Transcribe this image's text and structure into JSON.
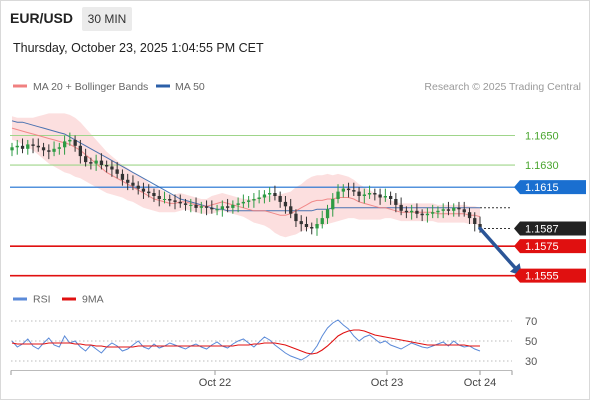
{
  "header": {
    "symbol": "EUR/USD",
    "timeframe": "30 MIN",
    "datetime": "Thursday, October 23, 2025 1:04:55 PM CET"
  },
  "colors": {
    "bull": "#2e9b44",
    "bear": "#333333",
    "ma20": "#f08080",
    "bands": "#fbd4d4",
    "ma50": "#2b5fa8",
    "target": "#1a6fd0",
    "support": "#e01010",
    "resistance": "#9fd58a",
    "rsi": "#5b8ad8",
    "rsi_ma": "#e01010",
    "arrow": "#2b5597"
  },
  "chart_data": [
    {
      "type": "line",
      "title": "",
      "legend": [
        {
          "name": "MA 20 + Bollinger Bands",
          "color": "#f08080"
        },
        {
          "name": "MA 50",
          "color": "#2b5fa8"
        }
      ],
      "credit": "Research © 2025 Trading Central",
      "x_ticks": [
        "Oct 22",
        "Oct 23",
        "Oct 24"
      ],
      "ylim": [
        1.1548,
        1.167
      ],
      "last_price": {
        "value": 1.1587,
        "label": "1.1587"
      },
      "levels": [
        {
          "label": "1.1650",
          "value": 1.165,
          "kind": "resistance"
        },
        {
          "label": "1.1630",
          "value": 1.163,
          "kind": "resistance"
        },
        {
          "label": "1.1615",
          "value": 1.1615,
          "kind": "target"
        },
        {
          "label": "1.1575",
          "value": 1.1575,
          "kind": "support"
        },
        {
          "label": "1.1555",
          "value": 1.1555,
          "kind": "support"
        }
      ],
      "price_close": [
        1.1642,
        1.1643,
        1.1641,
        1.1644,
        1.1643,
        1.1642,
        1.164,
        1.1639,
        1.1641,
        1.1642,
        1.1646,
        1.1647,
        1.1643,
        1.1636,
        1.1632,
        1.1631,
        1.1633,
        1.163,
        1.1629,
        1.1627,
        1.1624,
        1.162,
        1.1618,
        1.1616,
        1.1614,
        1.1612,
        1.1611,
        1.1609,
        1.1607,
        1.1607,
        1.1606,
        1.1605,
        1.1604,
        1.1603,
        1.1603,
        1.1601,
        1.1602,
        1.1601,
        1.16,
        1.16,
        1.1602,
        1.1601,
        1.1603,
        1.1604,
        1.1605,
        1.1606,
        1.1607,
        1.1608,
        1.161,
        1.1611,
        1.1609,
        1.1605,
        1.1602,
        1.1597,
        1.1592,
        1.159,
        1.1588,
        1.1587,
        1.159,
        1.1594,
        1.16,
        1.1607,
        1.1612,
        1.1614,
        1.1613,
        1.1612,
        1.1609,
        1.161,
        1.1611,
        1.161,
        1.1608,
        1.1609,
        1.1607,
        1.1603,
        1.1599,
        1.1598,
        1.1599,
        1.1597,
        1.1596,
        1.1597,
        1.1598,
        1.1599,
        1.16,
        1.1599,
        1.1601,
        1.16,
        1.1598,
        1.1594,
        1.159,
        1.1587
      ],
      "ma20": [
        1.1655,
        1.1654,
        1.1653,
        1.1652,
        1.1651,
        1.165,
        1.1649,
        1.1648,
        1.1647,
        1.1646,
        1.1645,
        1.1644,
        1.1642,
        1.164,
        1.1637,
        1.1634,
        1.1631,
        1.1628,
        1.1625,
        1.1623,
        1.1621,
        1.1619,
        1.1617,
        1.1615,
        1.1613,
        1.1611,
        1.1609,
        1.1607,
        1.1606,
        1.1605,
        1.1604,
        1.1604,
        1.1605,
        1.1605,
        1.1604,
        1.1603,
        1.1602,
        1.1602,
        1.1603,
        1.1604,
        1.1605,
        1.1604,
        1.1603,
        1.1602,
        1.1601,
        1.16,
        1.1599,
        1.1599,
        1.1599,
        1.1598,
        1.1597,
        1.1596,
        1.1596,
        1.1597,
        1.1599,
        1.1601,
        1.1603,
        1.1605,
        1.1606,
        1.1606,
        1.1607,
        1.1607,
        1.1608,
        1.1608,
        1.1608,
        1.1607,
        1.1605,
        1.1604,
        1.1603,
        1.1602,
        1.1601,
        1.1601,
        1.16,
        1.1599,
        1.1598,
        1.1598,
        1.1598,
        1.1598,
        1.1598,
        1.1598,
        1.1598,
        1.1597,
        1.1597,
        1.1597,
        1.1597,
        1.1597,
        1.1597,
        1.1596,
        1.1596,
        1.1595
      ],
      "ma50": [
        1.166,
        1.1659,
        1.1659,
        1.1658,
        1.1657,
        1.1656,
        1.1655,
        1.1654,
        1.1653,
        1.1652,
        1.1651,
        1.1649,
        1.1647,
        1.1645,
        1.1643,
        1.1641,
        1.1639,
        1.1637,
        1.1635,
        1.1633,
        1.1631,
        1.1629,
        1.1627,
        1.1625,
        1.1623,
        1.1621,
        1.1619,
        1.1617,
        1.1615,
        1.1613,
        1.1611,
        1.1609,
        1.1607,
        1.1606,
        1.1605,
        1.1604,
        1.1603,
        1.1602,
        1.1601,
        1.16,
        1.16,
        1.1599,
        1.1599,
        1.1599,
        1.1599,
        1.1599,
        1.1599,
        1.1599,
        1.1599,
        1.1599,
        1.1599,
        1.1599,
        1.1599,
        1.1599,
        1.1599,
        1.1599,
        1.1599,
        1.1599,
        1.16,
        1.16,
        1.16,
        1.1601,
        1.1601,
        1.1601,
        1.1601,
        1.1601,
        1.1601,
        1.1601,
        1.1601,
        1.1601,
        1.1601,
        1.1601,
        1.1601,
        1.1601,
        1.1601,
        1.1601,
        1.1601,
        1.1601,
        1.1601,
        1.1601,
        1.1601,
        1.1601,
        1.1601,
        1.1601,
        1.1601,
        1.1601,
        1.1601,
        1.1601,
        1.1601,
        1.1601
      ],
      "band_width": [
        0.0008,
        0.0008,
        0.0009,
        0.001,
        0.0011,
        0.0013,
        0.0015,
        0.0017,
        0.0018,
        0.0019,
        0.002,
        0.002,
        0.002,
        0.0019,
        0.0018,
        0.0017,
        0.0016,
        0.0015,
        0.0014,
        0.0013,
        0.0012,
        0.0011,
        0.0011,
        0.001,
        0.001,
        0.001,
        0.0009,
        0.0008,
        0.0008,
        0.0007,
        0.0006,
        0.0006,
        0.0006,
        0.0005,
        0.0005,
        0.0005,
        0.0005,
        0.0005,
        0.0006,
        0.0006,
        0.0006,
        0.0006,
        0.0006,
        0.0006,
        0.0006,
        0.0007,
        0.0008,
        0.0009,
        0.001,
        0.0011,
        0.0013,
        0.0014,
        0.0015,
        0.0015,
        0.0016,
        0.0016,
        0.0017,
        0.0017,
        0.0017,
        0.0017,
        0.0017,
        0.0016,
        0.0016,
        0.0015,
        0.0014,
        0.0013,
        0.0012,
        0.0011,
        0.001,
        0.0009,
        0.0008,
        0.0007,
        0.0006,
        0.0006,
        0.0006,
        0.0006,
        0.0006,
        0.0006,
        0.0006,
        0.0006,
        0.0006,
        0.0006,
        0.0006,
        0.0006,
        0.0006,
        0.0006,
        0.0006,
        0.0006,
        0.0006,
        0.0006
      ],
      "forecast": [
        {
          "bar": 89,
          "value": 1.1587
        },
        {
          "bar": 97,
          "value": 1.1555
        }
      ]
    },
    {
      "type": "line",
      "title": "",
      "legend": [
        {
          "name": "RSI",
          "color": "#5b8ad8"
        },
        {
          "name": "9MA",
          "color": "#e01010"
        }
      ],
      "ylim": [
        25,
        75
      ],
      "y_ticks": [
        {
          "label": "70",
          "value": 70
        },
        {
          "label": "50",
          "value": 50
        },
        {
          "label": "30",
          "value": 30
        }
      ],
      "rsi": [
        50,
        44,
        47,
        52,
        45,
        42,
        48,
        53,
        46,
        44,
        55,
        48,
        50,
        44,
        40,
        46,
        42,
        38,
        44,
        48,
        45,
        40,
        42,
        46,
        50,
        44,
        42,
        47,
        43,
        45,
        48,
        46,
        44,
        42,
        45,
        47,
        44,
        42,
        46,
        49,
        45,
        43,
        47,
        50,
        52,
        48,
        44,
        49,
        54,
        51,
        46,
        42,
        38,
        35,
        33,
        31,
        34,
        38,
        45,
        55,
        63,
        68,
        71,
        66,
        62,
        55,
        50,
        54,
        56,
        52,
        48,
        50,
        46,
        44,
        42,
        45,
        48,
        46,
        44,
        43,
        45,
        47,
        49,
        45,
        50,
        46,
        44,
        45,
        42,
        40
      ],
      "rsi_ma": [
        48,
        47,
        47,
        47,
        47,
        47,
        47,
        48,
        48,
        48,
        48,
        48,
        47,
        47,
        46,
        46,
        45,
        45,
        44,
        44,
        44,
        44,
        44,
        44,
        45,
        45,
        45,
        45,
        45,
        45,
        45,
        45,
        45,
        45,
        45,
        45,
        45,
        45,
        45,
        45,
        45,
        45,
        45,
        46,
        46,
        46,
        47,
        47,
        48,
        48,
        48,
        47,
        46,
        44,
        42,
        40,
        38,
        37,
        38,
        41,
        45,
        50,
        55,
        58,
        60,
        61,
        61,
        60,
        58,
        56,
        55,
        54,
        53,
        52,
        51,
        50,
        49,
        48,
        47,
        46,
        46,
        46,
        46,
        46,
        46,
        46,
        46,
        45,
        45,
        45
      ]
    }
  ]
}
